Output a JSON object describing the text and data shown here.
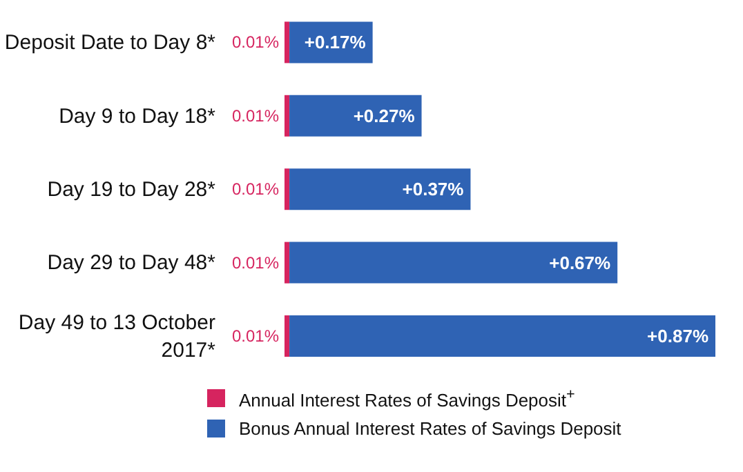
{
  "chart_data": {
    "type": "bar",
    "orientation": "horizontal",
    "stacked": true,
    "legend": "bottom",
    "categories": [
      "Deposit Date to Day 8*",
      "Day 9 to Day 18*",
      "Day 19 to Day 28*",
      "Day 29 to Day 48*",
      "Day 49 to 13 October 2017*"
    ],
    "series": [
      {
        "name": "Annual Interest Rates of Savings Deposit$^{+}$",
        "color": "#d6245f",
        "values": [
          0.01,
          0.01,
          0.01,
          0.01,
          0.01
        ],
        "value_labels": [
          "0.01%",
          "0.01%",
          "0.01%",
          "0.01%",
          "0.01%"
        ]
      },
      {
        "name": "Bonus Annual Interest Rates of Savings Deposit",
        "color": "#2f63b4",
        "values": [
          0.17,
          0.27,
          0.37,
          0.67,
          0.87
        ],
        "value_labels": [
          "+0.17%",
          "+0.27%",
          "+0.37%",
          "+0.67%",
          "+0.87%"
        ]
      }
    ]
  }
}
